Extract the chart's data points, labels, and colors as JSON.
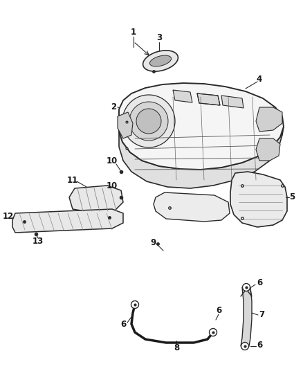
{
  "background_color": "#ffffff",
  "line_color": "#2a2a2a",
  "label_color": "#1a1a1a",
  "fig_width": 4.38,
  "fig_height": 5.33,
  "dpi": 100
}
